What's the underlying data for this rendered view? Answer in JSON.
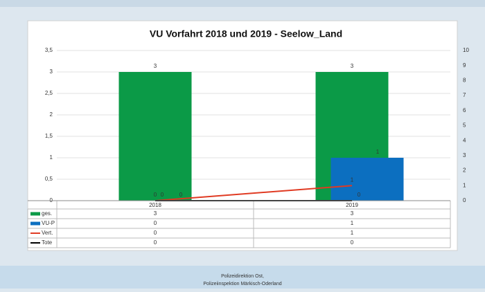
{
  "chart_data": {
    "type": "combo",
    "title": "VU Vorfahrt 2018 und 2019 - Seelow_Land",
    "categories": [
      "2018",
      "2019"
    ],
    "series": [
      {
        "name": "ges.",
        "type": "bar",
        "color": "#0b9a47",
        "values": [
          3,
          3
        ]
      },
      {
        "name": "VU-P",
        "type": "bar",
        "color": "#0c6fc0",
        "values": [
          0,
          1
        ]
      },
      {
        "name": "Vert.",
        "type": "line",
        "axis": "y2",
        "color": "#e03a22",
        "values": [
          0,
          1
        ]
      },
      {
        "name": "Tote",
        "type": "line",
        "axis": "y2",
        "color": "#000000",
        "values": [
          0,
          0
        ]
      }
    ],
    "ylim": [
      0,
      3.5
    ],
    "yticks": [
      0,
      {
        "value": 0.5,
        "label": "0,5"
      },
      1,
      {
        "value": 1.5,
        "label": "1,5"
      },
      2,
      {
        "value": 2.5,
        "label": "2,5"
      },
      3,
      {
        "value": 3.5,
        "label": "3,5"
      }
    ],
    "y2lim": [
      0,
      10
    ],
    "y2ticks": [
      0,
      1,
      2,
      3,
      4,
      5,
      6,
      7,
      8,
      9,
      10
    ],
    "footer": [
      "Polizeidirektion Ost,",
      "Polizeiinspektion Märkisch-Oderland"
    ]
  }
}
